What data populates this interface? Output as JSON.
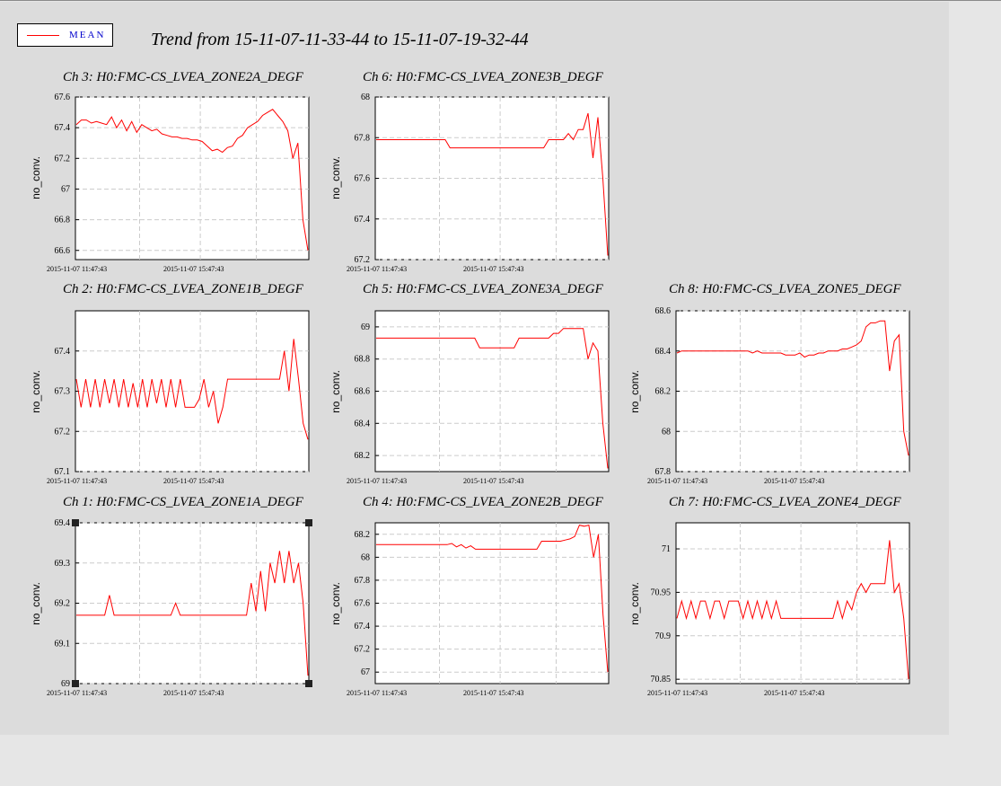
{
  "window": {
    "title": "Trend from 15-11-07-11-33-44 to 15-11-07-19-32-44"
  },
  "legend": {
    "label": "MEAN",
    "color": "#ff0000"
  },
  "chart_data": [
    {
      "type": "line",
      "title": "Ch 3: H0:FMC-CS_LVEA_ZONE2A_DEGF",
      "ylabel": "no_conv.",
      "ylim": [
        66.54,
        67.6
      ],
      "yticks": [
        "67.6",
        "67.4",
        "67.2",
        "67",
        "66.8",
        "66.6"
      ],
      "xticks": [
        "2015-11-07 11:47:43",
        "2015-11-07 15:47:43"
      ],
      "series": [
        {
          "values": [
            67.42,
            67.45,
            67.45,
            67.43,
            67.44,
            67.43,
            67.42,
            67.47,
            67.4,
            67.45,
            67.38,
            67.44,
            67.37,
            67.42,
            67.4,
            67.38,
            67.39,
            67.36,
            67.35,
            67.34,
            67.34,
            67.33,
            67.33,
            67.32,
            67.32,
            67.31,
            67.28,
            67.25,
            67.26,
            67.24,
            67.27,
            67.28,
            67.33,
            67.35,
            67.4,
            67.42,
            67.44,
            67.48,
            67.5,
            67.52,
            67.48,
            67.44,
            67.38,
            67.2,
            67.3,
            66.8,
            66.6
          ]
        }
      ],
      "color": "#ff0000"
    },
    {
      "type": "line",
      "title": "Ch 6: H0:FMC-CS_LVEA_ZONE3B_DEGF",
      "ylabel": "no_conv.",
      "ylim": [
        67.2,
        68.0
      ],
      "yticks": [
        "68",
        "67.8",
        "67.6",
        "67.4",
        "67.2"
      ],
      "xticks": [
        "2015-11-07 11:47:43",
        "2015-11-07 15:47:43"
      ],
      "series": [
        {
          "values": [
            67.79,
            67.79,
            67.79,
            67.79,
            67.79,
            67.79,
            67.79,
            67.79,
            67.79,
            67.79,
            67.79,
            67.79,
            67.79,
            67.79,
            67.79,
            67.75,
            67.75,
            67.75,
            67.75,
            67.75,
            67.75,
            67.75,
            67.75,
            67.75,
            67.75,
            67.75,
            67.75,
            67.75,
            67.75,
            67.75,
            67.75,
            67.75,
            67.75,
            67.75,
            67.75,
            67.79,
            67.79,
            67.79,
            67.79,
            67.82,
            67.79,
            67.84,
            67.84,
            67.92,
            67.7,
            67.9,
            67.6,
            67.22
          ]
        }
      ],
      "color": "#ff0000"
    },
    {
      "type": "line",
      "title": "Ch 2: H0:FMC-CS_LVEA_ZONE1B_DEGF",
      "ylabel": "no_conv.",
      "ylim": [
        67.1,
        67.5
      ],
      "yticks": [
        "67.4",
        "67.3",
        "67.2",
        "67.1"
      ],
      "xticks": [
        "2015-11-07 11:47:43",
        "2015-11-07 15:47:43"
      ],
      "series": [
        {
          "values": [
            67.33,
            67.26,
            67.33,
            67.26,
            67.33,
            67.26,
            67.33,
            67.27,
            67.33,
            67.26,
            67.33,
            67.26,
            67.32,
            67.26,
            67.33,
            67.26,
            67.33,
            67.27,
            67.33,
            67.26,
            67.33,
            67.26,
            67.33,
            67.26,
            67.26,
            67.26,
            67.28,
            67.33,
            67.26,
            67.3,
            67.22,
            67.26,
            67.33,
            67.33,
            67.33,
            67.33,
            67.33,
            67.33,
            67.33,
            67.33,
            67.33,
            67.33,
            67.33,
            67.33,
            67.4,
            67.3,
            67.43,
            67.33,
            67.22,
            67.18
          ]
        }
      ],
      "color": "#ff0000"
    },
    {
      "type": "line",
      "title": "Ch 5: H0:FMC-CS_LVEA_ZONE3A_DEGF",
      "ylabel": "no_conv.",
      "ylim": [
        68.1,
        69.1
      ],
      "yticks": [
        "69",
        "68.8",
        "68.6",
        "68.4",
        "68.2"
      ],
      "xticks": [
        "2015-11-07 11:47:43",
        "2015-11-07 15:47:43"
      ],
      "series": [
        {
          "values": [
            68.93,
            68.93,
            68.93,
            68.93,
            68.93,
            68.93,
            68.93,
            68.93,
            68.93,
            68.93,
            68.93,
            68.93,
            68.93,
            68.93,
            68.93,
            68.93,
            68.93,
            68.93,
            68.93,
            68.93,
            68.93,
            68.87,
            68.87,
            68.87,
            68.87,
            68.87,
            68.87,
            68.87,
            68.87,
            68.93,
            68.93,
            68.93,
            68.93,
            68.93,
            68.93,
            68.93,
            68.96,
            68.96,
            68.99,
            68.99,
            68.99,
            68.99,
            68.99,
            68.8,
            68.9,
            68.85,
            68.4,
            68.12
          ]
        }
      ],
      "color": "#ff0000"
    },
    {
      "type": "line",
      "title": "Ch 8: H0:FMC-CS_LVEA_ZONE5_DEGF",
      "ylabel": "no_conv.",
      "ylim": [
        67.8,
        68.6
      ],
      "yticks": [
        "68.6",
        "68.4",
        "68.2",
        "68",
        "67.8"
      ],
      "xticks": [
        "2015-11-07 11:47:43",
        "2015-11-07 15:47:43"
      ],
      "series": [
        {
          "values": [
            68.39,
            68.4,
            68.4,
            68.4,
            68.4,
            68.4,
            68.4,
            68.4,
            68.4,
            68.4,
            68.4,
            68.4,
            68.4,
            68.4,
            68.4,
            68.4,
            68.39,
            68.4,
            68.39,
            68.39,
            68.39,
            68.39,
            68.39,
            68.38,
            68.38,
            68.38,
            68.39,
            68.37,
            68.38,
            68.38,
            68.39,
            68.39,
            68.4,
            68.4,
            68.4,
            68.41,
            68.41,
            68.42,
            68.43,
            68.45,
            68.52,
            68.54,
            68.54,
            68.55,
            68.55,
            68.3,
            68.45,
            68.48,
            68.0,
            67.88
          ]
        }
      ],
      "color": "#ff0000"
    },
    {
      "type": "line",
      "title": "Ch 1: H0:FMC-CS_LVEA_ZONE1A_DEGF",
      "ylabel": "no_conv.",
      "ylim": [
        69.0,
        69.4
      ],
      "yticks": [
        "69.4",
        "69.3",
        "69.2",
        "69.1",
        "69"
      ],
      "xticks": [
        "2015-11-07 11:47:43",
        "2015-11-07 15:47:43"
      ],
      "series": [
        {
          "values": [
            69.17,
            69.17,
            69.17,
            69.17,
            69.17,
            69.17,
            69.17,
            69.22,
            69.17,
            69.17,
            69.17,
            69.17,
            69.17,
            69.17,
            69.17,
            69.17,
            69.17,
            69.17,
            69.17,
            69.17,
            69.17,
            69.2,
            69.17,
            69.17,
            69.17,
            69.17,
            69.17,
            69.17,
            69.17,
            69.17,
            69.17,
            69.17,
            69.17,
            69.17,
            69.17,
            69.17,
            69.17,
            69.25,
            69.18,
            69.28,
            69.18,
            69.3,
            69.25,
            69.33,
            69.25,
            69.33,
            69.25,
            69.3,
            69.2,
            69.02
          ]
        }
      ],
      "color": "#ff0000"
    },
    {
      "type": "line",
      "title": "Ch 4: H0:FMC-CS_LVEA_ZONE2B_DEGF",
      "ylabel": "no_conv.",
      "ylim": [
        66.9,
        68.3
      ],
      "yticks": [
        "68.2",
        "68",
        "67.8",
        "67.6",
        "67.4",
        "67.2",
        "67"
      ],
      "xticks": [
        "2015-11-07 11:47:43",
        "2015-11-07 15:47:43"
      ],
      "series": [
        {
          "values": [
            68.11,
            68.11,
            68.11,
            68.11,
            68.11,
            68.11,
            68.11,
            68.11,
            68.11,
            68.11,
            68.11,
            68.11,
            68.11,
            68.11,
            68.11,
            68.11,
            68.12,
            68.09,
            68.11,
            68.08,
            68.1,
            68.07,
            68.07,
            68.07,
            68.07,
            68.07,
            68.07,
            68.07,
            68.07,
            68.07,
            68.07,
            68.07,
            68.07,
            68.07,
            68.07,
            68.14,
            68.14,
            68.14,
            68.14,
            68.14,
            68.15,
            68.16,
            68.18,
            68.28,
            68.27,
            68.28,
            68.0,
            68.2,
            67.5,
            67.0
          ]
        }
      ],
      "color": "#ff0000"
    },
    {
      "type": "line",
      "title": "Ch 7: H0:FMC-CS_LVEA_ZONE4_DEGF",
      "ylabel": "no_conv.",
      "ylim": [
        70.845,
        71.03
      ],
      "yticks": [
        "71",
        "70.95",
        "70.9",
        "70.85"
      ],
      "xticks": [
        "2015-11-07 11:47:43",
        "2015-11-07 15:47:43"
      ],
      "series": [
        {
          "values": [
            70.92,
            70.94,
            70.92,
            70.94,
            70.92,
            70.94,
            70.94,
            70.92,
            70.94,
            70.94,
            70.92,
            70.94,
            70.94,
            70.94,
            70.92,
            70.94,
            70.92,
            70.94,
            70.92,
            70.94,
            70.92,
            70.94,
            70.92,
            70.92,
            70.92,
            70.92,
            70.92,
            70.92,
            70.92,
            70.92,
            70.92,
            70.92,
            70.92,
            70.92,
            70.94,
            70.92,
            70.94,
            70.93,
            70.95,
            70.96,
            70.95,
            70.96,
            70.96,
            70.96,
            70.96,
            71.01,
            70.95,
            70.96,
            70.92,
            70.85
          ]
        }
      ],
      "color": "#ff0000"
    }
  ]
}
